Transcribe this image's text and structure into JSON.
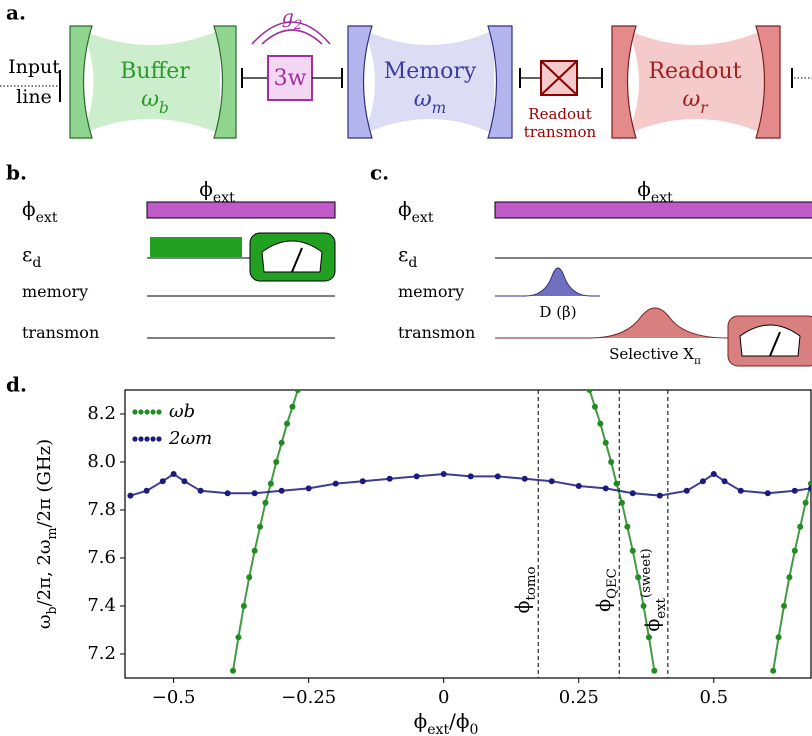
{
  "panel_labels": {
    "a": "a.",
    "b": "b.",
    "c": "c.",
    "d": "d."
  },
  "panel_a": {
    "input": [
      "Input",
      "line"
    ],
    "buffer": {
      "name": "Buffer",
      "symbol": [
        {
          "text": "ω"
        },
        {
          "text": "b",
          "sub": true
        }
      ]
    },
    "coupling": [
      {
        "text": "g"
      },
      {
        "text": "2",
        "sub": true
      }
    ],
    "mixer": "3w",
    "memory": {
      "name": "Memory",
      "symbol": [
        {
          "text": "ω"
        },
        {
          "text": "m",
          "sub": true
        }
      ]
    },
    "transmon": [
      "Readout",
      "transmon"
    ],
    "readout": {
      "name": "Readout",
      "symbol": [
        {
          "text": "ω"
        },
        {
          "text": "r",
          "sub": true
        }
      ]
    }
  },
  "panel_b": {
    "title": [
      {
        "text": "ϕ"
      },
      {
        "text": "ext",
        "sub": true
      }
    ],
    "rows": [
      [
        {
          "text": "ϕ"
        },
        {
          "text": "ext",
          "sub": true
        }
      ],
      [
        {
          "text": "ε"
        },
        {
          "text": "d",
          "sub": true
        }
      ],
      [
        {
          "text": "memory"
        }
      ],
      [
        {
          "text": "transmon"
        }
      ]
    ]
  },
  "panel_c": {
    "title": [
      {
        "text": "ϕ"
      },
      {
        "text": "ext",
        "sub": true
      }
    ],
    "rows": [
      [
        {
          "text": "ϕ"
        },
        {
          "text": "ext",
          "sub": true
        }
      ],
      [
        {
          "text": "ε"
        },
        {
          "text": "d",
          "sub": true
        }
      ],
      [
        {
          "text": "memory"
        }
      ],
      [
        {
          "text": "transmon"
        }
      ]
    ],
    "displacement": "D (β)",
    "pulse": [
      {
        "text": "Selective X"
      },
      {
        "text": "π",
        "sub": true
      }
    ]
  },
  "chart_data": {
    "type": "scatter",
    "x_label": [
      {
        "text": "ϕ"
      },
      {
        "text": "ext",
        "sub": true
      },
      {
        "text": "/ϕ"
      },
      {
        "text": "0",
        "sub": true
      }
    ],
    "y_label": [
      {
        "text": "ω"
      },
      {
        "text": "b",
        "sub": true
      },
      {
        "text": "/2π, 2ω"
      },
      {
        "text": "m",
        "sub": true
      },
      {
        "text": "/2π (GHz)"
      }
    ],
    "xlim": [
      -0.59,
      0.68
    ],
    "ylim": [
      7.1,
      8.3
    ],
    "xticks": [
      {
        "value": -0.5,
        "label": "−0.5"
      },
      {
        "value": -0.25,
        "label": "−0.25"
      },
      0,
      0.25,
      0.5
    ],
    "yticks": [
      7.2,
      7.4,
      7.6,
      7.8,
      {
        "value": 8,
        "label": "8.0"
      },
      8.2
    ],
    "fit_line": true,
    "legend": "upper left",
    "vlines": [
      {
        "x": 0.175,
        "label": [
          {
            "text": "ϕ"
          },
          {
            "text": "tomo",
            "sub": true
          }
        ]
      },
      {
        "x": 0.325,
        "label": [
          {
            "text": "ϕ"
          },
          {
            "text": "QEC",
            "sub": true
          }
        ]
      },
      {
        "x": 0.415,
        "label": [
          {
            "text": "ϕ"
          },
          {
            "text": "ext",
            "sub": true
          },
          {
            "text": "(sweet)",
            "sup": true
          }
        ]
      }
    ],
    "series": [
      {
        "name": "ωb",
        "color": "#218a21",
        "x": [
          -0.39,
          -0.38,
          -0.37,
          -0.36,
          -0.35,
          -0.34,
          -0.33,
          -0.32,
          -0.31,
          -0.3,
          -0.29,
          -0.28,
          -0.27,
          0,
          0.27,
          0.28,
          0.29,
          0.3,
          0.31,
          0.32,
          0.33,
          0.34,
          0.35,
          0.36,
          0.37,
          0.38,
          0.39,
          0.5,
          0.61,
          0.62,
          0.63,
          0.64,
          0.65,
          0.66,
          0.67,
          0.68
        ],
        "values": [
          7.13,
          7.27,
          7.4,
          7.52,
          7.63,
          7.73,
          7.83,
          7.91,
          8.0,
          8.08,
          8.16,
          8.23,
          8.3,
          null,
          8.3,
          8.23,
          8.16,
          8.08,
          8.0,
          7.91,
          7.83,
          7.73,
          7.63,
          7.52,
          7.4,
          7.27,
          7.13,
          null,
          7.13,
          7.27,
          7.4,
          7.52,
          7.63,
          7.73,
          7.83,
          7.91
        ]
      },
      {
        "name": "2ωm",
        "color": "#1a1a80",
        "x": [
          -0.58,
          -0.55,
          -0.52,
          -0.5,
          -0.48,
          -0.45,
          -0.4,
          -0.35,
          -0.3,
          -0.25,
          -0.2,
          -0.15,
          -0.1,
          -0.05,
          0,
          0.05,
          0.1,
          0.15,
          0.2,
          0.25,
          0.3,
          0.35,
          0.4,
          0.45,
          0.48,
          0.5,
          0.52,
          0.55,
          0.6,
          0.65,
          0.68
        ],
        "values": [
          7.86,
          7.88,
          7.92,
          7.95,
          7.92,
          7.88,
          7.87,
          7.87,
          7.88,
          7.89,
          7.91,
          7.92,
          7.93,
          7.94,
          7.95,
          7.94,
          7.94,
          7.93,
          7.92,
          7.9,
          7.89,
          7.87,
          7.86,
          7.88,
          7.92,
          7.95,
          7.92,
          7.88,
          7.87,
          7.88,
          7.89
        ]
      }
    ]
  }
}
